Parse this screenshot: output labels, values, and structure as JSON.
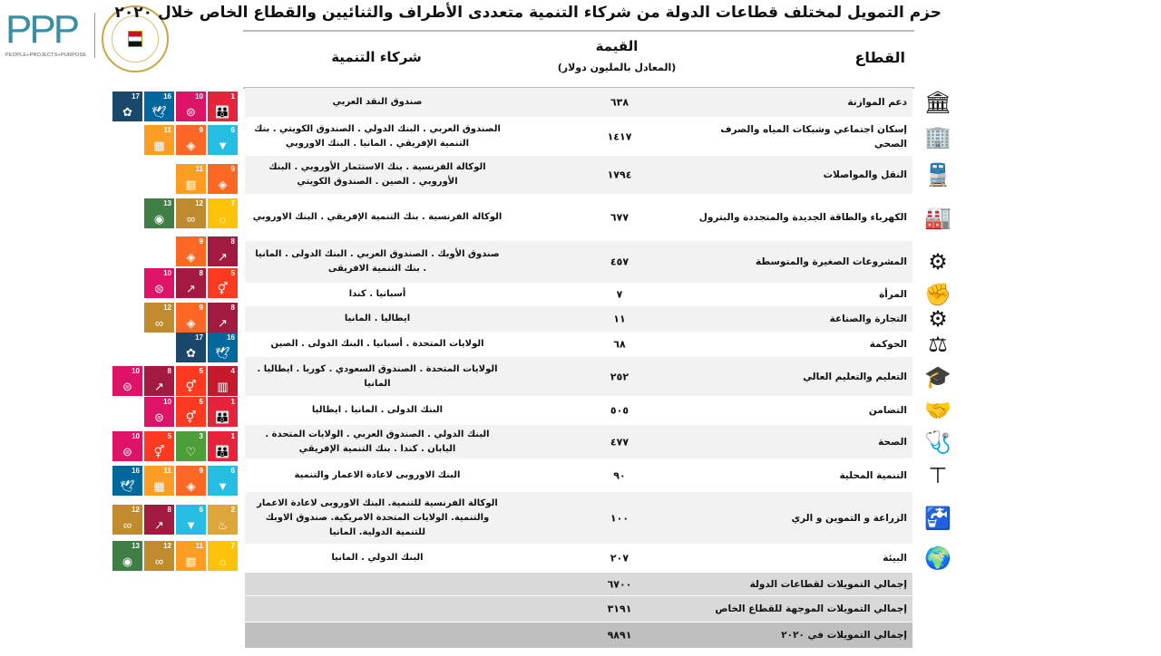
{
  "logos": {
    "ppp_text": "PPP",
    "ppp_tagline": "PEOPLE+PROJECTS+PURPOSE",
    "ministry_seal": "وزارة التعاون الدولي MINISTRY OF INTERNATIONAL COOPERATION"
  },
  "title": "حزم التمويل لمختلف قطاعات الدولة من شركاء التنمية متعددى الأطراف والثنائيين والقطاع الخاص خلال ٢٠٢٠",
  "headers": {
    "sector": "القطاع",
    "value": "القيمة",
    "value_unit": "(المعادل بالمليون دولار)",
    "partners": "شركاء التنمية"
  },
  "sdg_colors": {
    "1": "#E5243B",
    "2": "#DDA63A",
    "3": "#4C9F38",
    "4": "#C5192D",
    "5": "#FF3A21",
    "6": "#26BDE2",
    "7": "#FCC30B",
    "8": "#A21942",
    "9": "#FD6925",
    "10": "#DD1367",
    "11": "#FD9D24",
    "12": "#BF8B2E",
    "13": "#3F7E44",
    "16": "#00689D",
    "17": "#19486A"
  },
  "rows": [
    {
      "sector": "دعم الموازنة",
      "value": "٦٣٨",
      "partners": "صندوق النقد العربي",
      "icon": "budget-support-icon",
      "sdgs": [
        1,
        10,
        16,
        17
      ]
    },
    {
      "sector": "إسكان اجتماعي وشبكات المياه والصرف الصحي",
      "value": "١٤١٧",
      "partners": "الصندوق العربي . البنك الدولي . الصندوق الكويتي . بنك التنمية الإفريقي . المانيا . البنك الاوروبي",
      "icon": "building-icon",
      "sdgs": [
        6,
        9,
        11
      ]
    },
    {
      "sector": "النقل والمواصلات",
      "value": "١٧٩٤",
      "partners": "الوكالة الفرنسية . بنك الاستثمار الأوروبي . البنك الأوروبي . الصين . الصندوق الكويتي",
      "icon": "train-icon",
      "sdgs": [
        9,
        11
      ]
    },
    {
      "sector": "الكهرباء والطاقة الجديدة والمتجددة والبترول",
      "value": "٦٧٧",
      "partners": "الوكالة الفرنسية . بنك التنمية الإفريقي . البنك الاوروبي",
      "icon": "power-plant-icon",
      "sdgs": [
        7,
        12,
        13
      ]
    },
    {
      "sector": "المشروعات الصغيرة والمتوسطة",
      "value": "٤٥٧",
      "partners": "صندوق الأوبك . الصندوق العربي . البنك الدولى . المانيا . بنك التنمية الافريقى",
      "icon": "sme-icon",
      "sdgs": [
        8,
        9
      ]
    },
    {
      "sector": "المرأة",
      "value": "٧",
      "partners": "أسبانيا . كندا",
      "icon": "women-icon",
      "sdgs": [
        5,
        8,
        10
      ]
    },
    {
      "sector": "التجارة والصناعة",
      "value": "١١",
      "partners": "ايطاليا . المانيا",
      "icon": "gears-icon",
      "sdgs": [
        8,
        9,
        12
      ]
    },
    {
      "sector": "الحوكمة",
      "value": "٦٨",
      "partners": "الولايات المتحدة . أسبانيا . البنك الدولى . الصين",
      "icon": "scales-icon",
      "sdgs": [
        16,
        17
      ]
    },
    {
      "sector": "التعليم والتعليم العالي",
      "value": "٢٥٢",
      "partners": "الولايات المتحدة . الصندوق السعودي . كوريا . ايطاليا . المانيا",
      "icon": "graduate-icon",
      "sdgs": [
        4,
        5,
        8,
        10
      ]
    },
    {
      "sector": "التضامن",
      "value": "٥٠٥",
      "partners": "البنك الدولى . المانيا . ايطاليا",
      "icon": "handshake-icon",
      "sdgs": [
        1,
        5,
        10
      ]
    },
    {
      "sector": "الصحة",
      "value": "٤٧٧",
      "partners": "البنك الدولي . الصندوق العربي . الولايات المتحدة . اليابان . كندا . بنك التنمية الإفريقي",
      "icon": "stethoscope-icon",
      "sdgs": [
        1,
        3,
        5,
        10
      ]
    },
    {
      "sector": "التنمية المحلية",
      "value": "٩٠",
      "partners": "البنك الاوروبى لاعادة الاعمار والتنمية",
      "icon": "hierarchy-icon",
      "sdgs": [
        6,
        9,
        11,
        16
      ]
    },
    {
      "sector": "الزراعة و التموين و الري",
      "value": "١٠٠",
      "partners": "الوكالة الفرنسية للتنمية. البنك الاوروبى لاعادة الاعمار والتنمية. الولايات المتحدة الامريكية. صندوق الاوبك للتنمية الدولية. المانيا",
      "icon": "irrigation-icon",
      "sdgs": [
        2,
        6,
        8,
        12
      ]
    },
    {
      "sector": "البيئة",
      "value": "٢٠٧",
      "partners": "البنك الدولي . المانيا",
      "icon": "globe-leaf-icon",
      "sdgs": [
        7,
        11,
        12,
        13
      ]
    }
  ],
  "totals": [
    {
      "label": "إجمالي التمويلات لقطاعات الدولة",
      "value": "٦٧٠٠"
    },
    {
      "label": "إجمالي التمويلات الموجهة للقطاع الخاص",
      "value": "٣١٩١"
    },
    {
      "label": "إجمالي التمويلات في ٢٠٢٠",
      "value": "٩٨٩١"
    }
  ]
}
